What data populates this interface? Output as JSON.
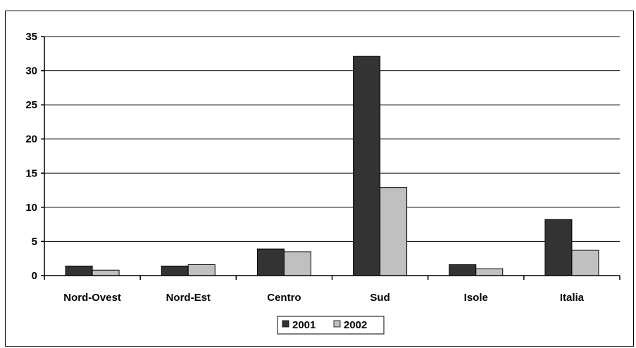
{
  "chart_data": {
    "type": "bar",
    "categories": [
      "Nord-Ovest",
      "Nord-Est",
      "Centro",
      "Sud",
      "Isole",
      "Italia"
    ],
    "series": [
      {
        "name": "2001",
        "values": [
          1.4,
          1.4,
          3.9,
          32.1,
          1.6,
          8.2
        ],
        "color": "#333333"
      },
      {
        "name": "2002",
        "values": [
          0.8,
          1.6,
          3.5,
          12.9,
          1.0,
          3.7
        ],
        "color": "#c0c0c0"
      }
    ],
    "ylim": [
      0,
      35
    ],
    "yticks": [
      0,
      5,
      10,
      15,
      20,
      25,
      30,
      35
    ],
    "title": "",
    "xlabel": "",
    "ylabel": "",
    "grid": true,
    "legend_position": "bottom"
  }
}
